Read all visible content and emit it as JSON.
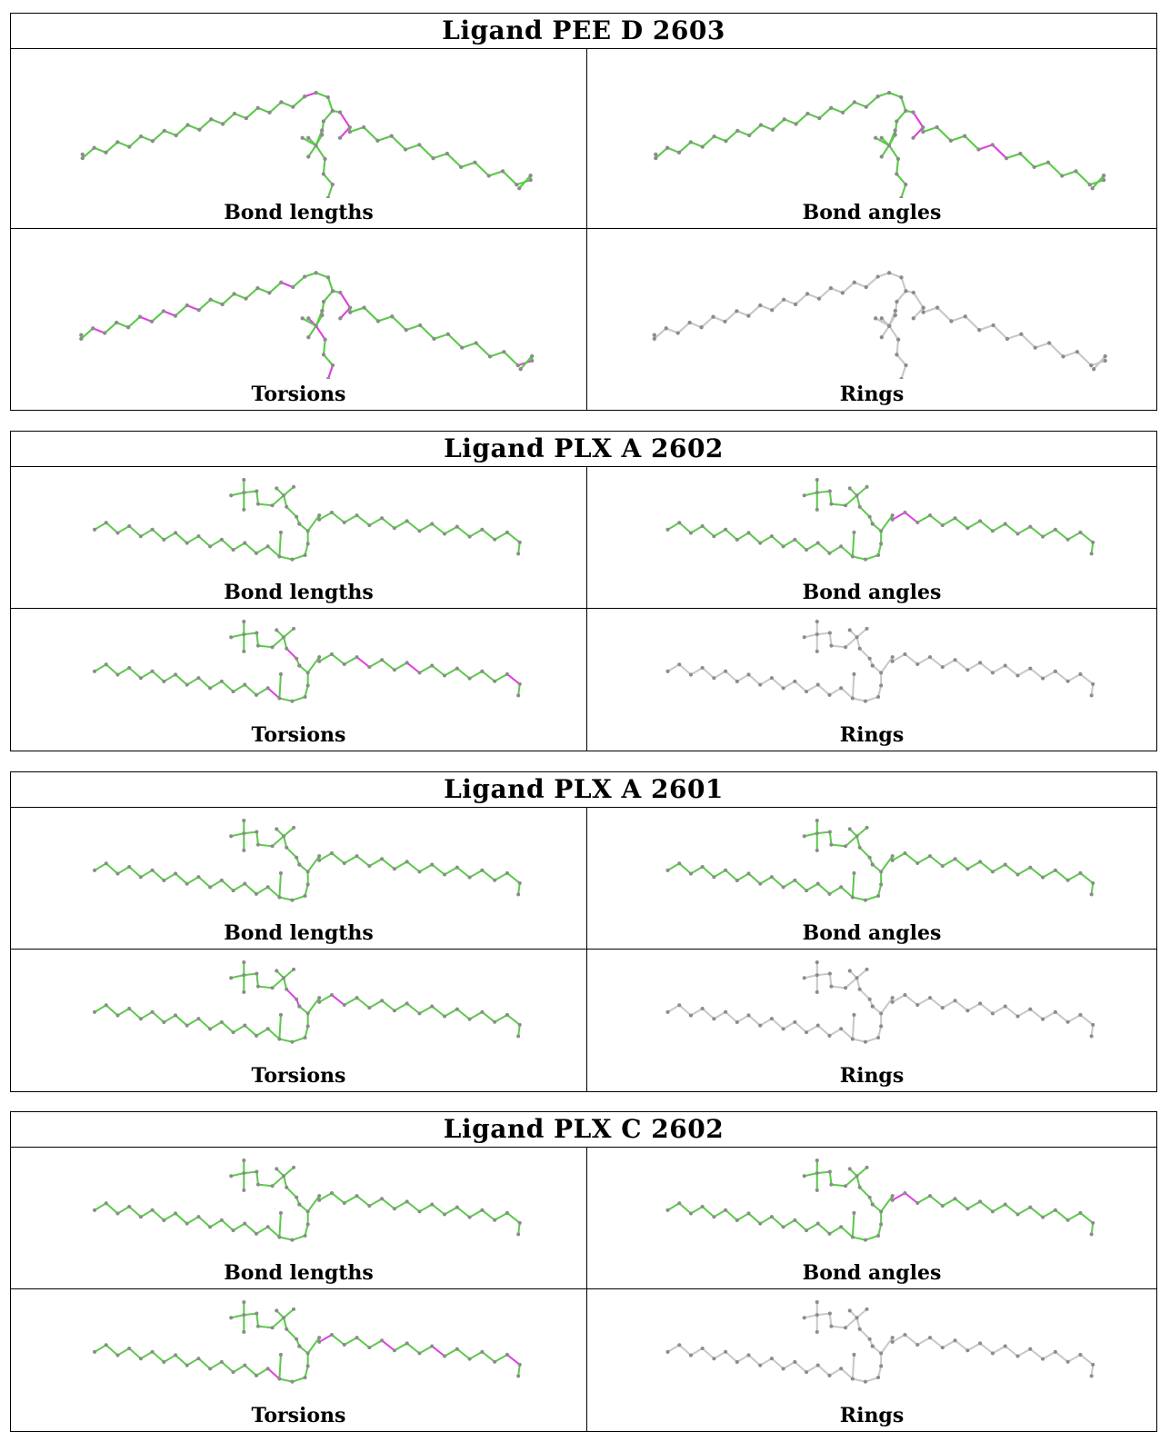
{
  "ligands": [
    {
      "title": "Ligand PEE D 2603",
      "shape": "pee",
      "panels": [
        {
          "label": "Bond lengths",
          "mode": "green",
          "highlight": [
            [
              19,
              20
            ],
            [
              27,
              28
            ],
            [
              28,
              29
            ]
          ]
        },
        {
          "label": "Bond angles",
          "mode": "green",
          "highlight": [
            [
              26,
              27
            ],
            [
              27,
              28
            ],
            [
              28,
              29
            ],
            [
              34,
              35
            ],
            [
              35,
              36
            ],
            [
              56,
              57
            ],
            [
              57,
              58
            ],
            [
              58,
              59
            ]
          ]
        },
        {
          "label": "Torsions",
          "mode": "green",
          "highlight": [
            [
              1,
              2
            ],
            [
              5,
              6
            ],
            [
              7,
              8
            ],
            [
              9,
              10
            ],
            [
              17,
              18
            ],
            [
              25,
              26
            ],
            [
              27,
              28
            ],
            [
              28,
              29
            ],
            [
              42,
              43
            ],
            [
              44,
              45
            ],
            [
              47,
              48
            ],
            [
              50,
              51
            ],
            [
              60,
              61
            ]
          ]
        },
        {
          "label": "Rings",
          "mode": "gray",
          "highlight": []
        }
      ]
    },
    {
      "title": "Ligand PLX A 2602",
      "shape": "plx",
      "panels": [
        {
          "label": "Bond lengths",
          "mode": "green",
          "highlight": []
        },
        {
          "label": "Bond angles",
          "mode": "green",
          "highlight": [
            [
              37,
              38
            ],
            [
              38,
              39
            ]
          ]
        },
        {
          "label": "Torsions",
          "mode": "green",
          "highlight": [
            [
              15,
              16
            ],
            [
              33,
              34
            ],
            [
              34,
              35
            ],
            [
              40,
              41
            ],
            [
              44,
              45
            ],
            [
              52,
              53
            ]
          ]
        },
        {
          "label": "Rings",
          "mode": "gray",
          "highlight": []
        }
      ]
    },
    {
      "title": "Ligand PLX A 2601",
      "shape": "plx",
      "panels": [
        {
          "label": "Bond lengths",
          "mode": "green",
          "highlight": []
        },
        {
          "label": "Bond angles",
          "mode": "green",
          "highlight": []
        },
        {
          "label": "Torsions",
          "mode": "green",
          "highlight": [
            [
              33,
              34
            ],
            [
              34,
              35
            ],
            [
              35,
              36
            ],
            [
              38,
              39
            ]
          ]
        },
        {
          "label": "Rings",
          "mode": "gray",
          "highlight": []
        }
      ]
    },
    {
      "title": "Ligand PLX C 2602",
      "shape": "plx",
      "panels": [
        {
          "label": "Bond lengths",
          "mode": "green",
          "highlight": []
        },
        {
          "label": "Bond angles",
          "mode": "green",
          "highlight": [
            [
              37,
              38
            ],
            [
              38,
              39
            ]
          ]
        },
        {
          "label": "Torsions",
          "mode": "green",
          "highlight": [
            [
              15,
              16
            ],
            [
              33,
              34
            ],
            [
              37,
              38
            ],
            [
              42,
              43
            ],
            [
              46,
              47
            ],
            [
              52,
              53
            ]
          ]
        },
        {
          "label": "Rings",
          "mode": "gray",
          "highlight": []
        }
      ]
    }
  ],
  "colors": {
    "ok_bond": "#5ccb4a",
    "outlier_bond": "#e040e0",
    "neutral_bond": "#c8c8c8",
    "atom": "#8c8c8c"
  }
}
